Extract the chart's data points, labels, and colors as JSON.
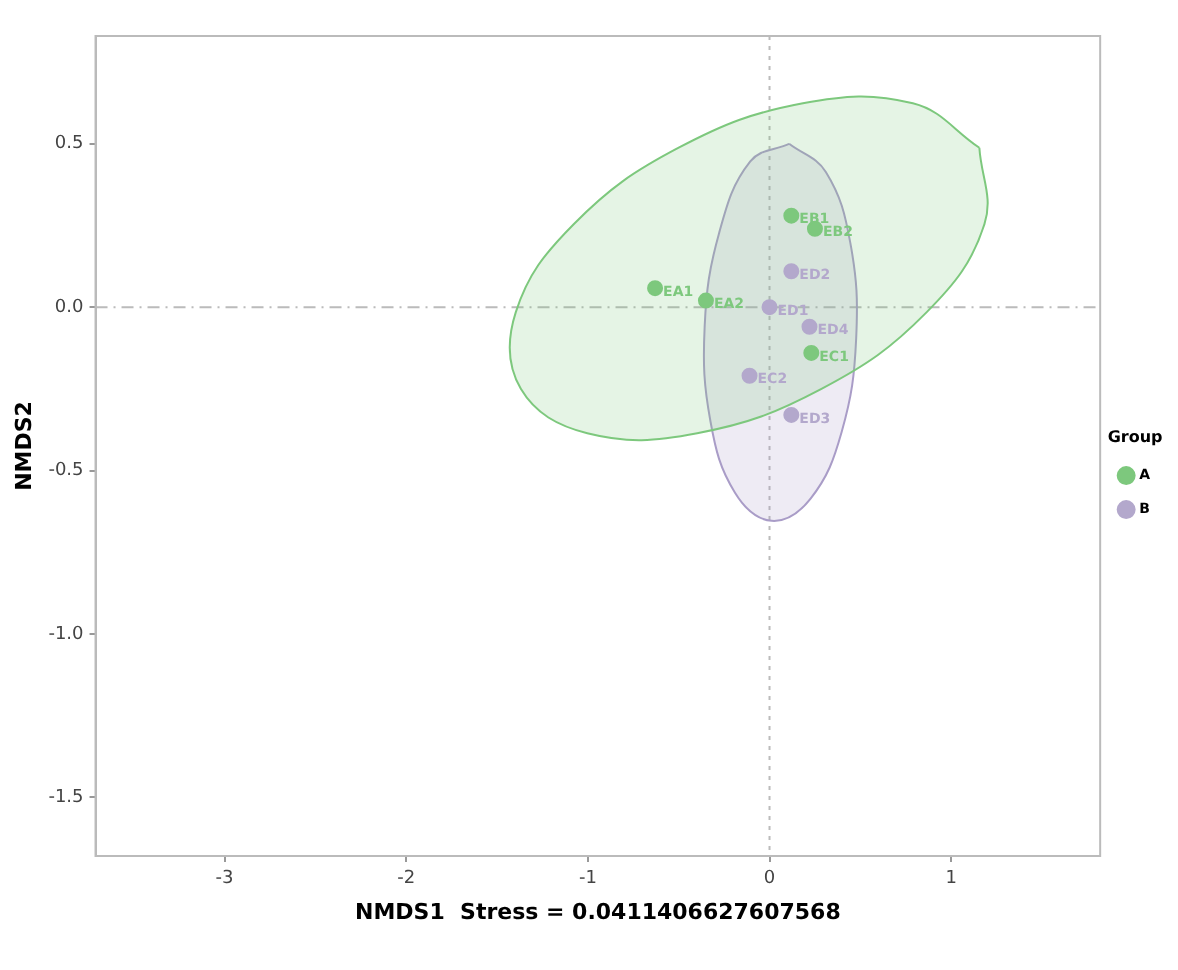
{
  "chart_data": {
    "type": "scatter",
    "xlabel": "NMDS1  Stress = 0.0411406627607568",
    "ylabel": "NMDS2",
    "legend_title": "Group",
    "legend": "right",
    "grid": false,
    "marker": "circle",
    "xlim": [
      -3.71,
      1.82
    ],
    "xticks": [
      -3,
      -2,
      -1,
      0,
      1
    ],
    "ylim": [
      -1.68,
      0.83
    ],
    "yticks": [
      {
        "value": 0.5,
        "label": "0.5"
      },
      {
        "value": 0,
        "label": "0.0"
      },
      {
        "value": -0.5,
        "label": "-0.5"
      },
      {
        "value": -1,
        "label": "-1.0"
      },
      {
        "value": -1.5,
        "label": "-1.5"
      }
    ],
    "ref_lines": [
      {
        "axis": "x",
        "value": 0,
        "color": "#bbbbbb",
        "line_style": "dotted"
      },
      {
        "axis": "y",
        "value": 0,
        "color": "#bbbbbb",
        "line_style": "dashed"
      }
    ],
    "series": [
      {
        "type": "area",
        "marker": "none",
        "color": "#7dc87d",
        "x": [
          1.155,
          1.183,
          0.864,
          0.286,
          -0.398,
          -1.003,
          -1.369,
          -1.397,
          -1.078,
          -0.5,
          0.184,
          0.789,
          1.155
        ],
        "values": [
          0.488,
          0.254,
          -0.016,
          -0.25,
          -0.386,
          -0.386,
          -0.25,
          -0.016,
          0.254,
          0.488,
          0.624,
          0.624,
          0.488
        ]
      },
      {
        "type": "area",
        "marker": "none",
        "color": "#a99cc7",
        "x": [
          0.108,
          0.31,
          0.445,
          0.477,
          0.397,
          0.226,
          0.012,
          -0.19,
          -0.325,
          -0.357,
          -0.277,
          -0.106,
          0.108
        ],
        "values": [
          0.5,
          0.414,
          0.196,
          -0.095,
          -0.382,
          -0.586,
          -0.654,
          -0.568,
          -0.35,
          -0.059,
          0.228,
          0.446,
          0.5
        ]
      },
      {
        "name": "A",
        "color": "#7dc87d",
        "x": [
          -0.63,
          -0.35,
          0.12,
          0.25,
          0.23
        ],
        "values": [
          0.058,
          0.02,
          0.28,
          0.24,
          -0.14
        ]
      },
      {
        "name": "B",
        "color": "#b3a8cc",
        "x": [
          0,
          0.12,
          0.22,
          -0.11,
          0.12
        ],
        "values": [
          0,
          0.11,
          -0.06,
          -0.21,
          -0.33
        ]
      }
    ],
    "annotations": [
      {
        "text": "EA1",
        "x": -0.63,
        "y": 0.058
      },
      {
        "text": "EA2",
        "x": -0.35,
        "y": 0.02
      },
      {
        "text": "EB1",
        "x": 0.12,
        "y": 0.28
      },
      {
        "text": "EB2",
        "x": 0.25,
        "y": 0.24
      },
      {
        "text": "EC1",
        "x": 0.23,
        "y": -0.14
      },
      {
        "text": "ED1",
        "x": 0,
        "y": 0
      },
      {
        "text": "ED2",
        "x": 0.12,
        "y": 0.11
      },
      {
        "text": "ED4",
        "x": 0.22,
        "y": -0.06
      },
      {
        "text": "EC2",
        "x": -0.11,
        "y": -0.21
      },
      {
        "text": "ED3",
        "x": 0.12,
        "y": -0.33
      }
    ]
  }
}
